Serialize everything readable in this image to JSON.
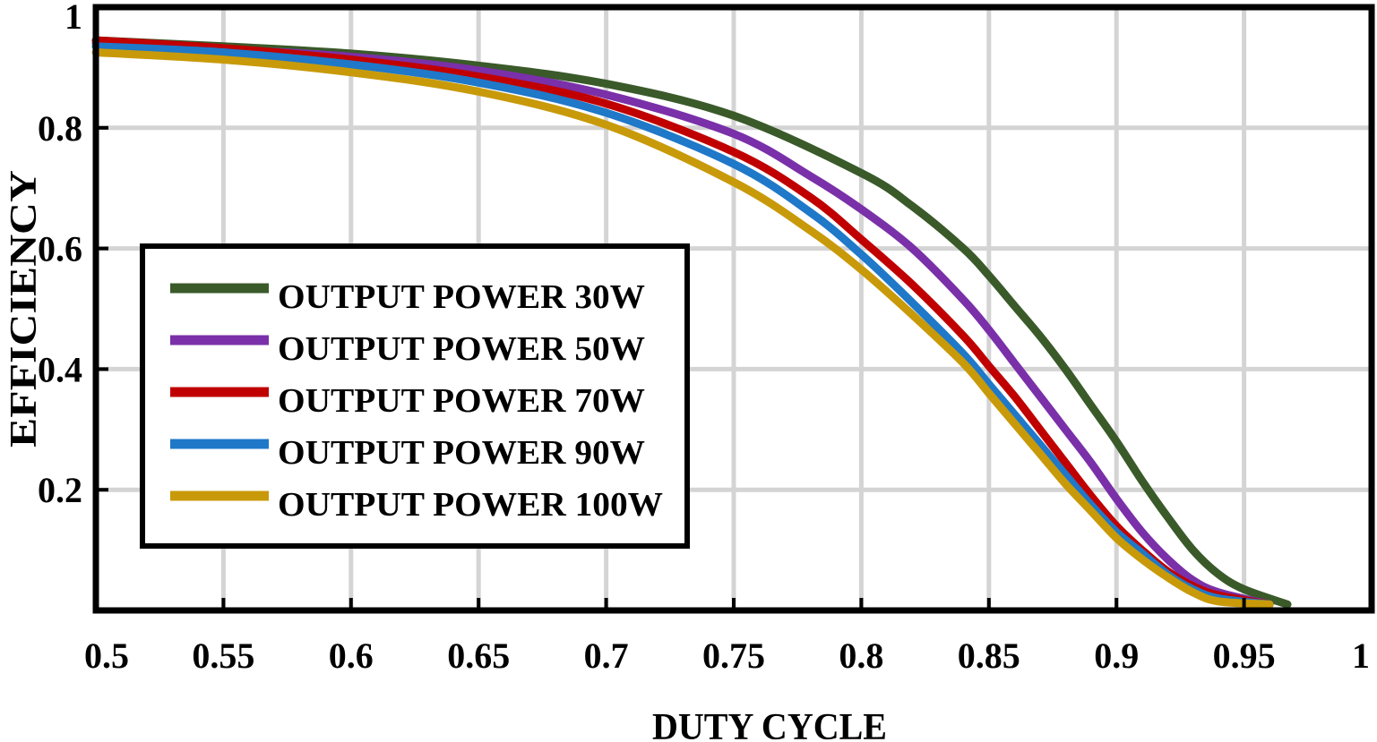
{
  "chart_data": {
    "type": "line",
    "title": "",
    "xlabel": "DUTY CYCLE",
    "ylabel": "EFFICIENCY",
    "xlim": [
      0.5,
      1.0
    ],
    "ylim": [
      0.0,
      1.0
    ],
    "grid": true,
    "legend_position": "left",
    "x_ticks": [
      {
        "value": 0.5,
        "label": "0.5"
      },
      {
        "value": 0.55,
        "label": "0.55"
      },
      {
        "value": 0.6,
        "label": "0.6"
      },
      {
        "value": 0.65,
        "label": "0.65"
      },
      {
        "value": 0.7,
        "label": "0.7"
      },
      {
        "value": 0.75,
        "label": "0.75"
      },
      {
        "value": 0.8,
        "label": "0.8"
      },
      {
        "value": 0.85,
        "label": "0.85"
      },
      {
        "value": 0.9,
        "label": "0.9"
      },
      {
        "value": 0.95,
        "label": "0.95"
      },
      {
        "value": 1.0,
        "label": "1"
      }
    ],
    "y_ticks": [
      {
        "value": 0.2,
        "label": "0.2"
      },
      {
        "value": 0.4,
        "label": "0.4"
      },
      {
        "value": 0.6,
        "label": "0.6"
      },
      {
        "value": 0.8,
        "label": "0.8"
      },
      {
        "value": 1.0,
        "label": "1"
      }
    ],
    "series": [
      {
        "name": "OUTPUT POWER 30W",
        "color": "#3a5a2a",
        "x": [
          0.5,
          0.55,
          0.6,
          0.65,
          0.7,
          0.75,
          0.8,
          0.82,
          0.84,
          0.85,
          0.86,
          0.87,
          0.88,
          0.89,
          0.9,
          0.91,
          0.92,
          0.93,
          0.94,
          0.95,
          0.967
        ],
        "y": [
          0.945,
          0.935,
          0.923,
          0.903,
          0.873,
          0.82,
          0.725,
          0.67,
          0.6,
          0.555,
          0.505,
          0.455,
          0.4,
          0.34,
          0.28,
          0.215,
          0.155,
          0.1,
          0.06,
          0.035,
          0.01
        ]
      },
      {
        "name": "OUTPUT POWER 50W",
        "color": "#7a30a8",
        "x": [
          0.5,
          0.55,
          0.6,
          0.65,
          0.7,
          0.75,
          0.78,
          0.8,
          0.82,
          0.84,
          0.85,
          0.86,
          0.87,
          0.88,
          0.89,
          0.9,
          0.91,
          0.92,
          0.93,
          0.94,
          0.96
        ],
        "y": [
          0.94,
          0.93,
          0.918,
          0.895,
          0.855,
          0.79,
          0.72,
          0.665,
          0.6,
          0.515,
          0.465,
          0.41,
          0.355,
          0.3,
          0.245,
          0.185,
          0.13,
          0.085,
          0.05,
          0.03,
          0.01
        ]
      },
      {
        "name": "OUTPUT POWER 70W",
        "color": "#c00000",
        "x": [
          0.5,
          0.55,
          0.6,
          0.65,
          0.7,
          0.75,
          0.78,
          0.8,
          0.82,
          0.84,
          0.85,
          0.86,
          0.87,
          0.88,
          0.89,
          0.9,
          0.91,
          0.92,
          0.93,
          0.94,
          0.96
        ],
        "y": [
          0.945,
          0.932,
          0.913,
          0.885,
          0.84,
          0.76,
          0.685,
          0.615,
          0.54,
          0.455,
          0.405,
          0.355,
          0.3,
          0.245,
          0.19,
          0.14,
          0.1,
          0.065,
          0.04,
          0.025,
          0.01
        ]
      },
      {
        "name": "OUTPUT POWER 90W",
        "color": "#1f78c8",
        "x": [
          0.5,
          0.55,
          0.6,
          0.65,
          0.7,
          0.75,
          0.78,
          0.8,
          0.82,
          0.84,
          0.85,
          0.86,
          0.87,
          0.88,
          0.89,
          0.9,
          0.91,
          0.92,
          0.93,
          0.94,
          0.96
        ],
        "y": [
          0.935,
          0.925,
          0.905,
          0.875,
          0.825,
          0.74,
          0.66,
          0.59,
          0.51,
          0.425,
          0.375,
          0.325,
          0.275,
          0.225,
          0.175,
          0.13,
          0.095,
          0.06,
          0.035,
          0.02,
          0.01
        ]
      },
      {
        "name": "OUTPUT POWER 100W",
        "color": "#c89a0a",
        "x": [
          0.5,
          0.55,
          0.6,
          0.65,
          0.7,
          0.75,
          0.78,
          0.8,
          0.82,
          0.84,
          0.85,
          0.86,
          0.87,
          0.88,
          0.89,
          0.9,
          0.91,
          0.92,
          0.93,
          0.94,
          0.96
        ],
        "y": [
          0.925,
          0.913,
          0.892,
          0.86,
          0.805,
          0.71,
          0.63,
          0.565,
          0.49,
          0.41,
          0.36,
          0.31,
          0.26,
          0.21,
          0.165,
          0.12,
          0.085,
          0.055,
          0.03,
          0.015,
          0.01
        ]
      }
    ]
  }
}
